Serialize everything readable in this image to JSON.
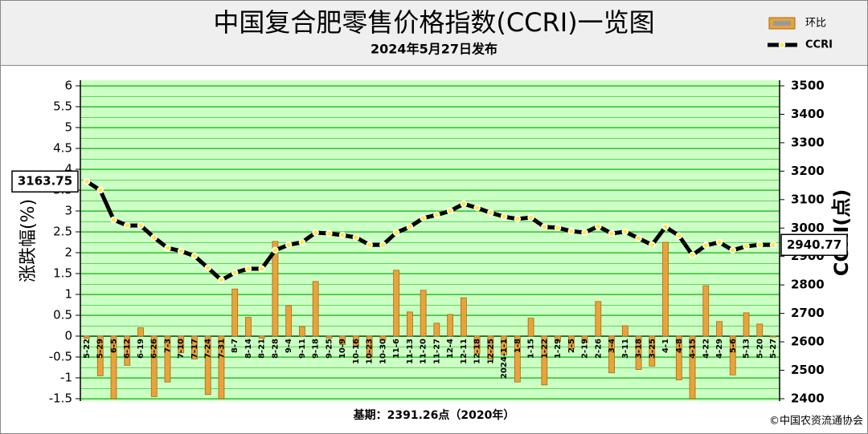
{
  "chart_data": {
    "type": "bar-line",
    "title": "中国复合肥零售价格指数(CCRI)一览图",
    "subtitle": "2024年5月27日发布",
    "y_label": "涨跌幅(%)",
    "y2_label": "CCRI(点)",
    "base_note": "基期：2391.26点（2020年）",
    "credit": "©中国农资流通协会",
    "categories": [
      "5-22",
      "5-29",
      "6-5",
      "6-12",
      "6-19",
      "6-26",
      "7-3",
      "7-10",
      "7-17",
      "7-24",
      "7-31",
      "8-7",
      "8-14",
      "8-21",
      "8-28",
      "9-4",
      "9-11",
      "9-18",
      "9-25",
      "10-9",
      "10-16",
      "10-23",
      "10-30",
      "11-6",
      "11-13",
      "11-20",
      "11-27",
      "12-4",
      "12-11",
      "12-18",
      "12-25",
      "2024-1-1",
      "1-8",
      "1-15",
      "1-22",
      "1-29",
      "2-5",
      "2-19",
      "2-26",
      "3-4",
      "3-11",
      "3-18",
      "3-25",
      "4-1",
      "4-8",
      "4-15",
      "4-22",
      "4-29",
      "5-6",
      "5-13",
      "5-20",
      "5-27"
    ],
    "series": [
      {
        "name": "环比",
        "color": "#e8a33c",
        "type": "bar",
        "values": [
          -0.05,
          -0.95,
          -1.5,
          -0.7,
          0.2,
          -1.45,
          -1.1,
          -0.4,
          -0.55,
          -1.4,
          -1.5,
          1.13,
          0.45,
          -0.05,
          2.27,
          0.73,
          0.23,
          1.31,
          -0.05,
          -0.2,
          -0.23,
          -0.52,
          -0.1,
          1.58,
          0.58,
          1.1,
          0.31,
          0.52,
          0.92,
          -0.42,
          -0.55,
          -0.45,
          -1.1,
          0.43,
          -1.17,
          -0.12,
          -0.3,
          -0.15,
          0.83,
          -0.88,
          0.25,
          -0.8,
          -0.72,
          2.25,
          -1.05,
          -1.5,
          1.21,
          0.35,
          -0.93,
          0.56,
          0.29,
          -0.02
        ]
      },
      {
        "name": "CCRI",
        "color": "#000000",
        "type": "line",
        "axis": "y2",
        "values": [
          3163.75,
          3133,
          3029,
          3009,
          3009,
          2967,
          2930,
          2919,
          2902,
          2860,
          2817,
          2843,
          2857,
          2857,
          2922,
          2941,
          2950,
          2984,
          2981,
          2975,
          2967,
          2941,
          2941,
          2984,
          3004,
          3035,
          3046,
          3060,
          3085,
          3071,
          3054,
          3040,
          3032,
          3037,
          3004,
          3001,
          2989,
          2984,
          3006,
          2981,
          2987,
          2964,
          2941,
          3004,
          2973,
          2905,
          2939,
          2950,
          2922,
          2936,
          2941,
          2940.77
        ]
      }
    ],
    "ylim": [
      -1.5,
      6
    ],
    "yticks": [
      -1.5,
      -1,
      -0.5,
      0,
      0.5,
      1,
      1.5,
      2,
      2.5,
      3,
      3.5,
      4,
      4.5,
      5,
      5.5,
      6
    ],
    "y2lim": [
      2400,
      3500
    ],
    "y2ticks": [
      2400,
      2500,
      2600,
      2700,
      2800,
      2900,
      3000,
      3100,
      3200,
      3300,
      3400,
      3500
    ],
    "grid": true,
    "legend": "top-right"
  }
}
